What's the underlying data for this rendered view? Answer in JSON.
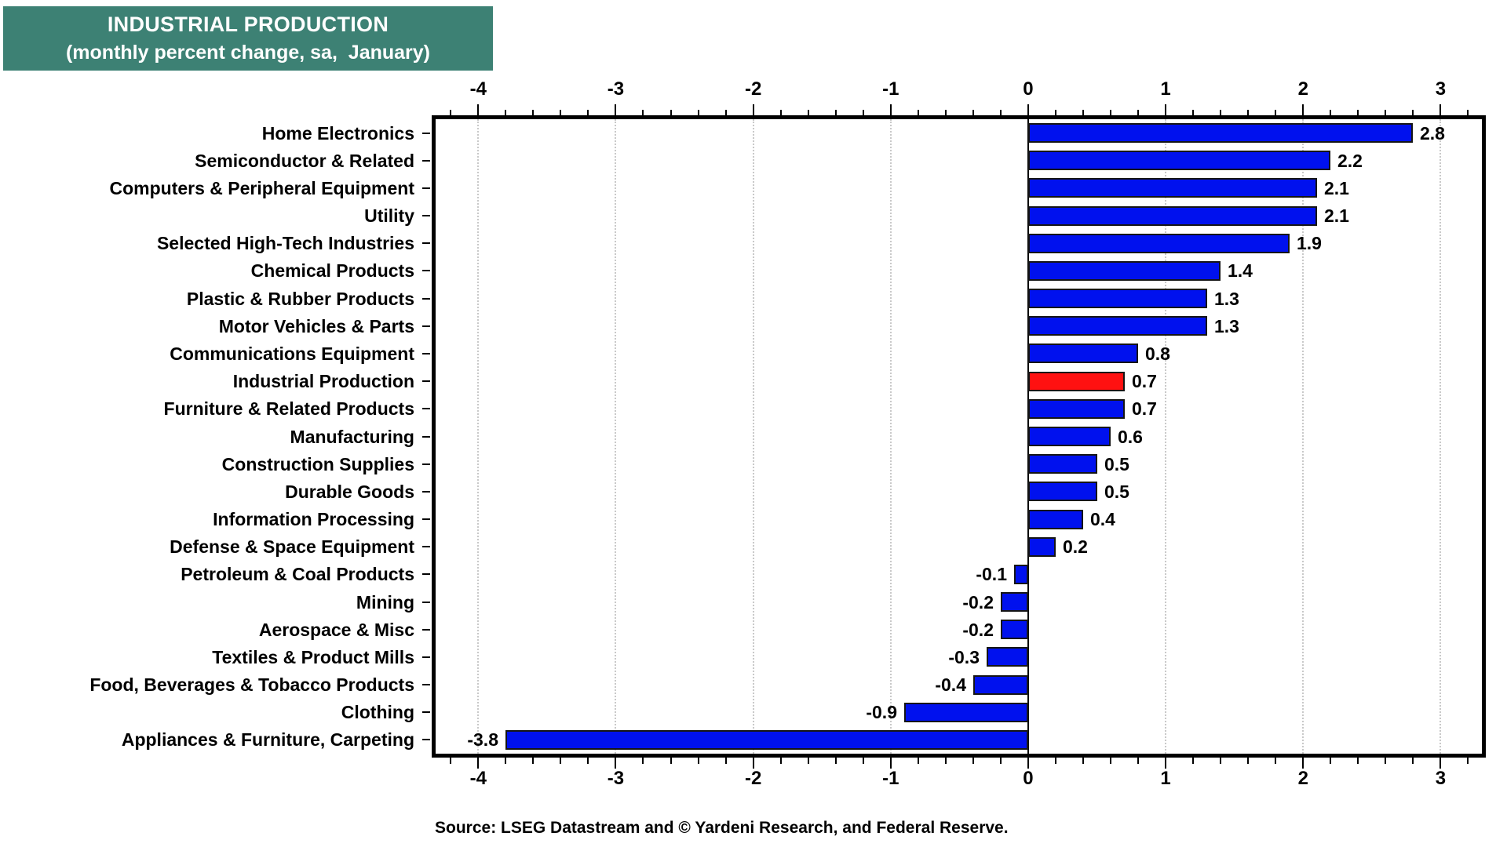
{
  "title": {
    "line1": "INDUSTRIAL PRODUCTION",
    "line2": "(monthly percent change, sa,  January)"
  },
  "source": "Source: LSEG Datastream and © Yardeni Research, and Federal Reserve.",
  "colors": {
    "title_bg": "#3D8174",
    "title_text": "#FFFFFF",
    "bar_blue": "#0011EE",
    "bar_highlight_red": "#FF1111",
    "bar_border": "#151515",
    "gridline": "#C9C9C9",
    "zero_line": "#000000",
    "frame": "#000000",
    "text": "#000000"
  },
  "chart_data": {
    "type": "bar",
    "orientation": "horizontal",
    "title": "INDUSTRIAL PRODUCTION (monthly percent change, sa, January)",
    "categories": [
      "Home Electronics",
      "Semiconductor & Related",
      "Computers & Peripheral Equipment",
      "Utility",
      "Selected High-Tech Industries",
      "Chemical Products",
      "Plastic & Rubber Products",
      "Motor Vehicles & Parts",
      "Communications Equipment",
      "Industrial Production",
      "Furniture & Related Products",
      "Manufacturing",
      "Construction Supplies",
      "Durable Goods",
      "Information Processing",
      "Defense & Space Equipment",
      "Petroleum & Coal Products",
      "Mining",
      "Aerospace & Misc",
      "Textiles & Product Mills",
      "Food, Beverages & Tobacco Products",
      "Clothing",
      "Appliances & Furniture, Carpeting"
    ],
    "values": [
      2.8,
      2.2,
      2.1,
      2.1,
      1.9,
      1.4,
      1.3,
      1.3,
      0.8,
      0.7,
      0.7,
      0.6,
      0.5,
      0.5,
      0.4,
      0.2,
      -0.1,
      -0.2,
      -0.2,
      -0.3,
      -0.4,
      -0.9,
      -3.8
    ],
    "value_labels": [
      "2.8",
      "2.2",
      "2.1",
      "2.1",
      "1.9",
      "1.4",
      "1.3",
      "1.3",
      "0.8",
      "0.7",
      "0.7",
      "0.6",
      "0.5",
      "0.5",
      "0.4",
      "0.2",
      "-0.1",
      "-0.2",
      "-0.2",
      "-0.3",
      "-0.4",
      "-0.9",
      "-3.8"
    ],
    "highlight_category": "Industrial Production",
    "xlabel": "",
    "ylabel": "",
    "xlim": [
      -4.31,
      3.3
    ],
    "x_ticks": [
      -4,
      -3,
      -2,
      -1,
      0,
      1,
      2,
      3
    ],
    "x_tick_labels": [
      "-4",
      "-3",
      "-2",
      "-1",
      "0",
      "1",
      "2",
      "3"
    ],
    "minor_tick_step": 0.2,
    "grid": "vertical dotted gridlines at integer ticks, solid black line at zero",
    "axis_labels_position": "top and bottom",
    "legend_position": "none"
  }
}
